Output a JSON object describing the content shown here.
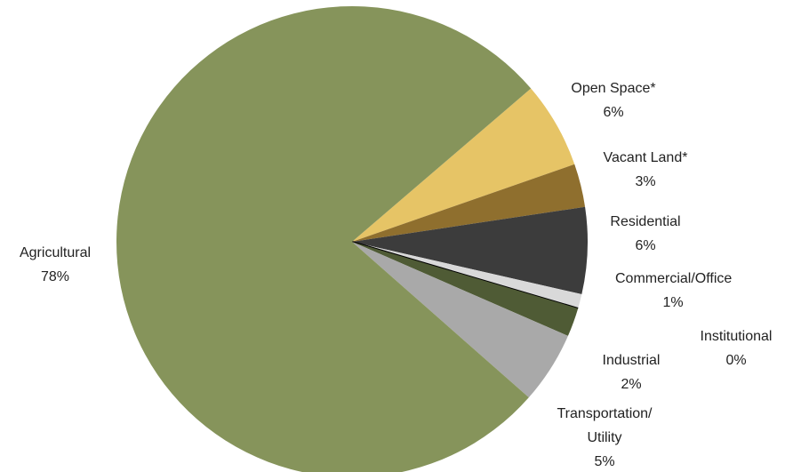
{
  "chart_data": {
    "type": "pie",
    "categories": [
      "Open Space*",
      "Vacant Land*",
      "Residential",
      "Commercial/Office",
      "Institutional",
      "Industrial",
      "Transportation/ Utility",
      "Agricultural"
    ],
    "values": [
      6,
      3,
      6,
      1,
      0,
      2,
      5,
      78
    ],
    "value_labels": [
      "6%",
      "3%",
      "6%",
      "1%",
      "0%",
      "2%",
      "5%",
      "78%"
    ],
    "colors": [
      "#e6c466",
      "#8f6f2e",
      "#3c3c3c",
      "#d9d9d9",
      "#000000",
      "#4f5b35",
      "#a9a9a9",
      "#86945b"
    ]
  }
}
